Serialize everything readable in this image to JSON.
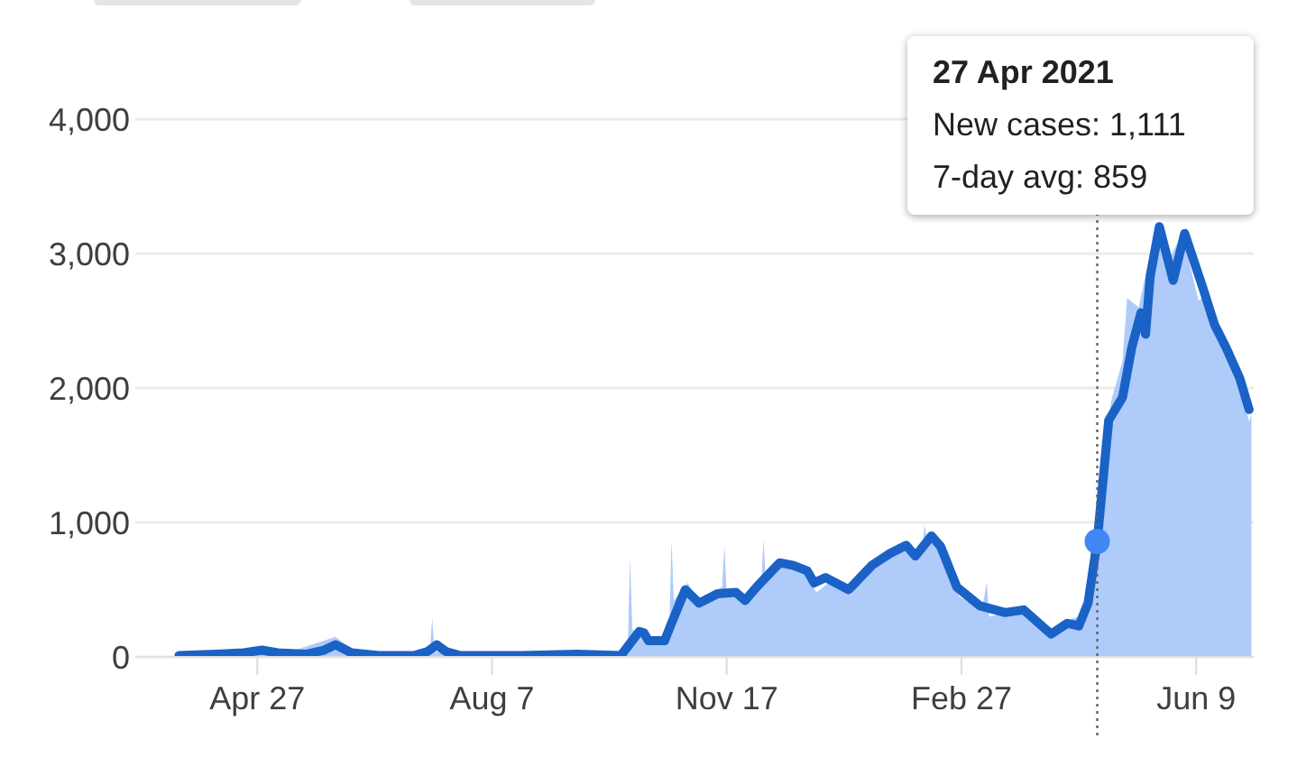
{
  "chart_data": {
    "type": "area",
    "xlim": [
      "2020-03-05",
      "2021-07-04"
    ],
    "xticks": [
      {
        "value": "2020-04-27",
        "label": "Apr 27"
      },
      {
        "value": "2020-08-07",
        "label": "Aug 7"
      },
      {
        "value": "2020-11-17",
        "label": "Nov 17"
      },
      {
        "value": "2021-02-27",
        "label": "Feb 27"
      },
      {
        "value": "2021-06-09",
        "label": "Jun 9"
      }
    ],
    "ylim": [
      0,
      4000
    ],
    "yticks": [
      0,
      {
        "value": 1000,
        "label": "1,000"
      },
      {
        "value": 2000,
        "label": "2,000"
      },
      {
        "value": 3000,
        "label": "3,000"
      },
      {
        "value": 4000,
        "label": "4,000"
      }
    ],
    "grid": "y",
    "series": [
      {
        "color": "#aecbfa",
        "x": [
          "2020-03-24",
          "2020-04-20",
          "2020-04-29",
          "2020-05-08",
          "2020-05-31",
          "2020-06-10",
          "2020-07-11",
          "2020-07-12",
          "2020-07-13",
          "2020-07-25",
          "2020-09-01",
          "2020-10-01",
          "2020-10-05",
          "2020-10-06",
          "2020-10-07",
          "2020-10-14",
          "2020-10-20",
          "2020-10-23",
          "2020-10-24",
          "2020-10-25",
          "2020-10-31",
          "2020-11-06",
          "2020-11-13",
          "2020-11-15",
          "2020-11-16",
          "2020-11-17",
          "2020-11-26",
          "2020-12-02",
          "2020-12-03",
          "2020-12-04",
          "2020-12-12",
          "2020-12-20",
          "2020-12-26",
          "2021-01-01",
          "2021-01-10",
          "2021-01-20",
          "2021-01-28",
          "2021-02-04",
          "2021-02-08",
          "2021-02-10",
          "2021-02-11",
          "2021-02-12",
          "2021-02-19",
          "2021-02-26",
          "2021-03-08",
          "2021-03-10",
          "2021-03-11",
          "2021-03-20",
          "2021-03-27",
          "2021-04-08",
          "2021-04-15",
          "2021-04-20",
          "2021-04-24",
          "2021-04-27",
          "2021-05-03",
          "2021-05-08",
          "2021-05-10",
          "2021-05-15",
          "2021-05-20",
          "2021-05-24",
          "2021-05-28",
          "2021-06-03",
          "2021-06-10",
          "2021-06-14",
          "2021-06-20",
          "2021-06-26",
          "2021-07-02",
          "2021-07-03"
        ],
        "values": [
          0,
          20,
          60,
          20,
          150,
          20,
          30,
          290,
          40,
          10,
          20,
          10,
          60,
          740,
          200,
          160,
          120,
          150,
          870,
          420,
          550,
          380,
          500,
          520,
          830,
          460,
          430,
          540,
          880,
          560,
          720,
          640,
          480,
          560,
          460,
          700,
          800,
          850,
          720,
          800,
          980,
          880,
          760,
          450,
          350,
          560,
          300,
          330,
          380,
          150,
          280,
          300,
          520,
          1111,
          1900,
          2200,
          2670,
          2600,
          3000,
          3200,
          2950,
          3150,
          2650,
          2700,
          2350,
          2150,
          1750,
          1800
        ]
      },
      {
        "type": "line",
        "color": "#1a62c6",
        "x": [
          "2020-03-24",
          "2020-04-09",
          "2020-04-21",
          "2020-04-29",
          "2020-05-06",
          "2020-05-18",
          "2020-05-26",
          "2020-05-31",
          "2020-06-07",
          "2020-06-19",
          "2020-07-04",
          "2020-07-10",
          "2020-07-14",
          "2020-07-18",
          "2020-07-24",
          "2020-08-20",
          "2020-09-13",
          "2020-10-02",
          "2020-10-06",
          "2020-10-10",
          "2020-10-12",
          "2020-10-14",
          "2020-10-21",
          "2020-10-24",
          "2020-10-30",
          "2020-11-05",
          "2020-11-13",
          "2020-11-21",
          "2020-11-25",
          "2020-11-30",
          "2020-12-10",
          "2020-12-16",
          "2020-12-22",
          "2020-12-25",
          "2020-12-30",
          "2021-01-09",
          "2021-01-19",
          "2021-01-27",
          "2021-02-03",
          "2021-02-07",
          "2021-02-14",
          "2021-02-18",
          "2021-02-25",
          "2021-03-07",
          "2021-03-18",
          "2021-03-26",
          "2021-04-07",
          "2021-04-14",
          "2021-04-19",
          "2021-04-23",
          "2021-04-27",
          "2021-05-02",
          "2021-05-08",
          "2021-05-12",
          "2021-05-16",
          "2021-05-18",
          "2021-05-20",
          "2021-05-24",
          "2021-05-30",
          "2021-06-04",
          "2021-06-12",
          "2021-06-17",
          "2021-06-22",
          "2021-06-28",
          "2021-07-02"
        ],
        "values": [
          10,
          20,
          30,
          50,
          30,
          20,
          50,
          90,
          30,
          10,
          10,
          40,
          90,
          40,
          10,
          10,
          20,
          10,
          100,
          190,
          180,
          120,
          120,
          250,
          500,
          400,
          470,
          480,
          420,
          520,
          700,
          680,
          640,
          550,
          590,
          500,
          680,
          770,
          830,
          750,
          900,
          820,
          520,
          380,
          330,
          350,
          170,
          250,
          230,
          400,
          859,
          1760,
          1930,
          2300,
          2560,
          2400,
          2830,
          3200,
          2800,
          3150,
          2740,
          2470,
          2300,
          2070,
          1840
        ]
      },
      {
        "type": "scatter",
        "color": "#4285f4",
        "marker": "circle",
        "x": [
          "2021-04-27"
        ],
        "values": [
          859
        ]
      }
    ],
    "ref_lines": [
      {
        "axis": "x",
        "value": "2021-04-27",
        "color": "#5f6368",
        "line_style": "dotted"
      }
    ],
    "annotations": [
      "27 Apr 2021",
      "New cases: 1,111",
      "7-day avg: 859"
    ]
  }
}
